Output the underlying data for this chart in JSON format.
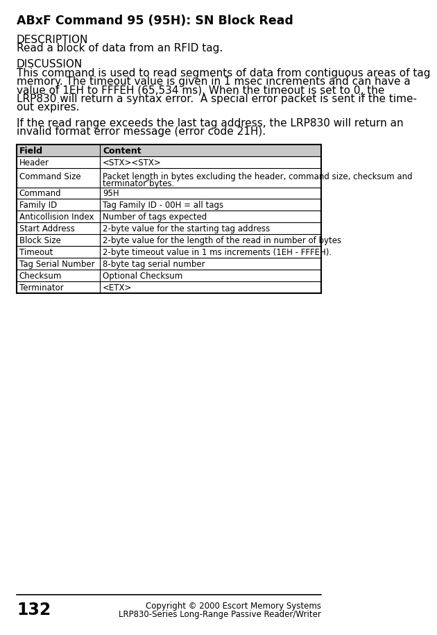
{
  "title": "ABxF Command 95 (95H): SN Block Read",
  "description_label": "DESCRIPTION",
  "description_text": "Read a block of data from an RFID tag.",
  "discussion_label": "DISCUSSION",
  "disc_lines": [
    "This command is used to read segments of data from contiguous areas of tag",
    "memory. The timeout value is given in 1 msec increments and can have a",
    "value of 1EH to FFFEH (65,534 ms). When the timeout is set to 0, the",
    "LRP830 will return a syntax error.  A special error packet is sent if the time-",
    "out expires."
  ],
  "disc2_lines": [
    "If the read range exceeds the last tag address, the LRP830 will return an",
    "invalid format error message (error code 21H)."
  ],
  "table_headers": [
    "Field",
    "Content"
  ],
  "table_rows": [
    [
      "Header",
      "<STX><STX>"
    ],
    [
      "Command Size",
      "Packet length in bytes excluding the header, command size, checksum and\nterminator bytes."
    ],
    [
      "Command",
      "95H"
    ],
    [
      "Family ID",
      "Tag Family ID - 00H = all tags"
    ],
    [
      "Anticollision Index",
      "Number of tags expected"
    ],
    [
      "Start Address",
      "2-byte value for the starting tag address"
    ],
    [
      "Block Size",
      "2-byte value for the length of the read in number of bytes"
    ],
    [
      "Timeout",
      "2-byte timeout value in 1 ms increments (1EH - FFFEH)."
    ],
    [
      "Tag Serial Number",
      "8-byte tag serial number"
    ],
    [
      "Checksum",
      "Optional Checksum"
    ],
    [
      "Terminator",
      "<ETX>"
    ]
  ],
  "footer_page": "132",
  "footer_right1": "Copyright © 2000 Escort Memory Systems",
  "footer_right2": "LRP830-Series Long-Range Passive Reader/Writer",
  "bg_color": "#ffffff",
  "table_header_bg": "#c8c8c8",
  "text_color": "#000000"
}
